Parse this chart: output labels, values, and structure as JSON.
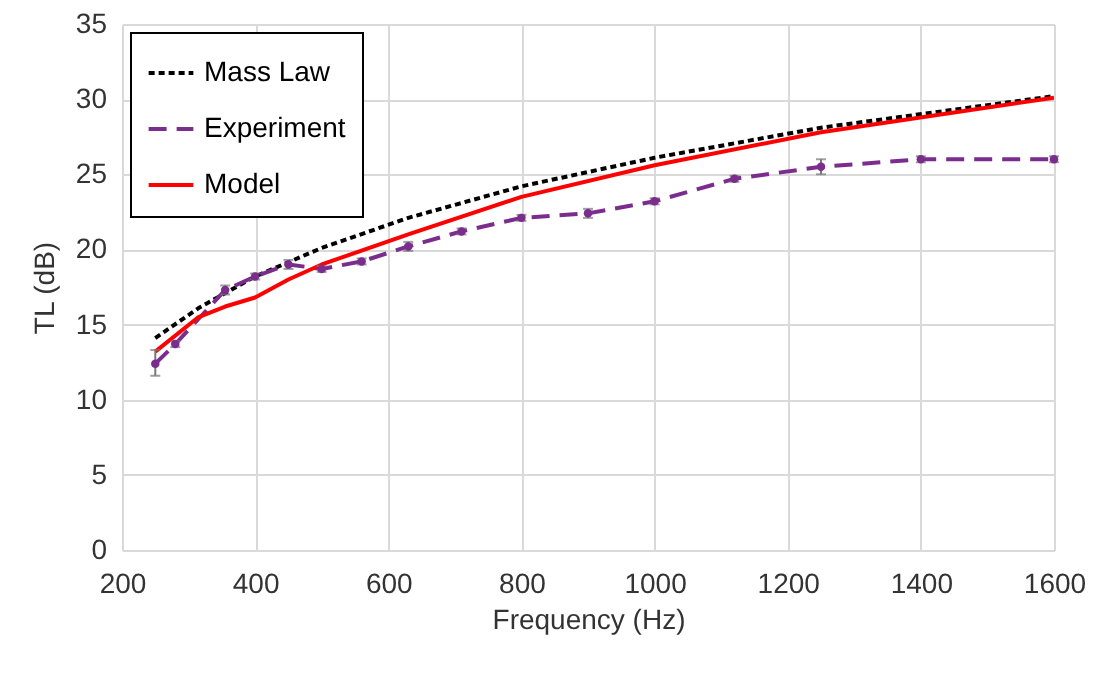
{
  "chart_data": {
    "type": "line",
    "xlabel": "Frequency (Hz)",
    "ylabel": "TL (dB)",
    "xlim": [
      200,
      1600
    ],
    "xticks": [
      200,
      400,
      600,
      800,
      1000,
      1200,
      1400,
      1600
    ],
    "ylim": [
      0,
      35
    ],
    "yticks": [
      0,
      5,
      10,
      15,
      20,
      25,
      30,
      35
    ],
    "grid": true,
    "legend": "top left",
    "series": [
      {
        "name": "Mass Law",
        "color": "#000000",
        "line_style": "dotted",
        "x": [
          250,
          315,
          400,
          500,
          630,
          800,
          1000,
          1250,
          1600
        ],
        "values": [
          14.1,
          16.1,
          18.2,
          20.1,
          22.1,
          24.2,
          26.1,
          28.1,
          30.2
        ]
      },
      {
        "name": "Experiment",
        "color": "#7b2d8e",
        "line_style": "dashed",
        "marker": "circle",
        "x": [
          250,
          280,
          355,
          400,
          450,
          500,
          560,
          630,
          710,
          800,
          900,
          1000,
          1120,
          1250,
          1400,
          1600
        ],
        "values": [
          12.4,
          13.7,
          17.3,
          18.2,
          19.0,
          18.7,
          19.2,
          20.2,
          21.2,
          22.1,
          22.4,
          23.2,
          24.7,
          25.5,
          26.0,
          26.0
        ],
        "errors": [
          [
            11.6,
            13.3
          ],
          0.2,
          0.3,
          0.2,
          0.3,
          0.2,
          0.2,
          0.3,
          0.2,
          0.2,
          0.3,
          0.2,
          0.2,
          [
            25.0,
            26.0
          ],
          0.2,
          0.2
        ]
      },
      {
        "name": "Model",
        "color": "#ff0000",
        "line_style": "solid",
        "x": [
          250,
          315,
          355,
          400,
          450,
          500,
          630,
          800,
          1000,
          1250,
          1600
        ],
        "values": [
          13.2,
          15.5,
          16.2,
          16.8,
          18.0,
          19.0,
          21.0,
          23.5,
          25.6,
          27.8,
          30.1
        ]
      }
    ]
  }
}
